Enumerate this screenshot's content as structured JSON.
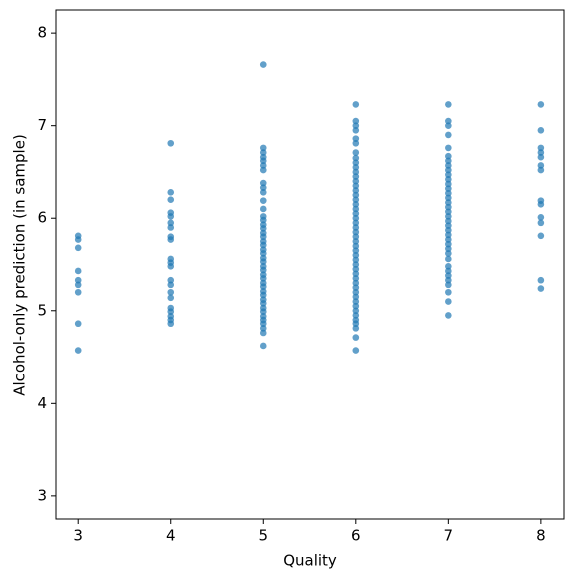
{
  "chart_data": {
    "type": "scatter",
    "x_label": "Quality",
    "y_label": "Alcohol-only prediction (in sample)",
    "color": "#1f77b4",
    "xlim": [
      2.76,
      8.25
    ],
    "xticks": [
      3,
      4,
      5,
      6,
      7,
      8
    ],
    "ylim": [
      2.75,
      8.25
    ],
    "yticks": [
      3,
      4,
      5,
      6,
      7,
      8
    ],
    "x": [
      3,
      3,
      3,
      3,
      3,
      3,
      3,
      3,
      3,
      4,
      4,
      4,
      4,
      4,
      4,
      4,
      4,
      4,
      4,
      4,
      4,
      4,
      4,
      4,
      4,
      4,
      4,
      4,
      4,
      4,
      5,
      5,
      5,
      5,
      5,
      5,
      5,
      5,
      5,
      5,
      5,
      5,
      5,
      5,
      5,
      5,
      5,
      5,
      5,
      5,
      5,
      5,
      5,
      5,
      5,
      5,
      5,
      5,
      5,
      5,
      5,
      5,
      5,
      5,
      5,
      5,
      5,
      5,
      5,
      5,
      5,
      5,
      6,
      6,
      6,
      6,
      6,
      6,
      6,
      6,
      6,
      6,
      6,
      6,
      6,
      6,
      6,
      6,
      6,
      6,
      6,
      6,
      6,
      6,
      6,
      6,
      6,
      6,
      6,
      6,
      6,
      6,
      6,
      6,
      6,
      6,
      6,
      6,
      6,
      6,
      6,
      6,
      6,
      6,
      6,
      6,
      6,
      6,
      6,
      7,
      7,
      7,
      7,
      7,
      7,
      7,
      7,
      7,
      7,
      7,
      7,
      7,
      7,
      7,
      7,
      7,
      7,
      7,
      7,
      7,
      7,
      7,
      7,
      7,
      7,
      7,
      7,
      7,
      7,
      7,
      7,
      7,
      7,
      7,
      7,
      8,
      8,
      8,
      8,
      8,
      8,
      8,
      8,
      8,
      8,
      8,
      8,
      8,
      8
    ],
    "values": [
      5.81,
      5.77,
      5.68,
      5.43,
      5.33,
      5.28,
      5.2,
      4.86,
      4.57,
      6.81,
      6.28,
      6.2,
      6.06,
      6.02,
      5.95,
      5.9,
      5.8,
      5.77,
      5.56,
      5.52,
      5.48,
      5.33,
      5.28,
      5.2,
      5.14,
      5.03,
      4.99,
      4.94,
      4.9,
      4.86,
      4.62,
      4.76,
      4.81,
      4.86,
      4.9,
      4.94,
      4.99,
      5.03,
      5.08,
      5.12,
      5.17,
      5.21,
      5.26,
      5.3,
      5.35,
      5.39,
      5.44,
      5.48,
      5.53,
      5.57,
      5.62,
      5.66,
      5.71,
      5.75,
      5.8,
      5.84,
      5.89,
      5.93,
      5.98,
      6.02,
      6.1,
      6.19,
      6.28,
      6.33,
      6.38,
      6.52,
      6.57,
      6.62,
      6.66,
      6.71,
      6.76,
      7.66,
      4.57,
      4.71,
      4.81,
      4.86,
      4.9,
      4.95,
      5.0,
      5.05,
      5.1,
      5.15,
      5.2,
      5.25,
      5.3,
      5.35,
      5.4,
      5.45,
      5.5,
      5.55,
      5.6,
      5.65,
      5.7,
      5.75,
      5.8,
      5.85,
      5.9,
      5.95,
      6.0,
      6.05,
      6.1,
      6.15,
      6.2,
      6.25,
      6.3,
      6.35,
      6.4,
      6.45,
      6.5,
      6.55,
      6.6,
      6.65,
      6.71,
      6.81,
      6.86,
      6.95,
      7.0,
      7.05,
      7.23,
      4.95,
      5.1,
      5.2,
      5.28,
      5.33,
      5.38,
      5.43,
      5.48,
      5.56,
      5.62,
      5.67,
      5.72,
      5.77,
      5.82,
      5.87,
      5.92,
      5.97,
      6.02,
      6.07,
      6.12,
      6.17,
      6.22,
      6.27,
      6.32,
      6.37,
      6.42,
      6.47,
      6.52,
      6.57,
      6.62,
      6.67,
      6.76,
      6.9,
      7.0,
      7.05,
      7.23,
      7.23,
      6.95,
      6.76,
      6.71,
      6.66,
      6.57,
      6.52,
      6.19,
      6.15,
      6.01,
      5.95,
      5.81,
      5.33,
      5.24
    ]
  }
}
